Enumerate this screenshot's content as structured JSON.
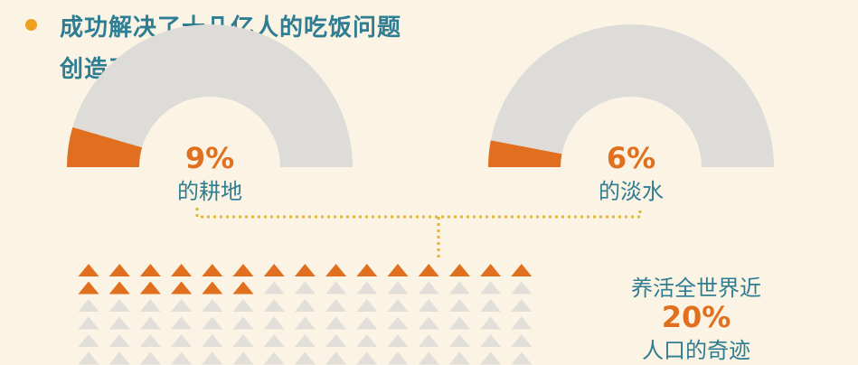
{
  "headline": {
    "line1": "成功解决了十几亿人的吃饭问题",
    "line2": "创造了用全世界"
  },
  "colors": {
    "background": "#fbf3e3",
    "accent": "#e0701f",
    "bullet": "#f0a020",
    "text": "#2f7d93",
    "track": "#dedcd9",
    "connector": "#e0b43c",
    "triangle_empty": "#e2dfdb"
  },
  "chart_data": [
    {
      "type": "gauge",
      "value": 9,
      "max": 100,
      "value_label": "9%",
      "label": "的耕地"
    },
    {
      "type": "gauge",
      "value": 6,
      "max": 100,
      "value_label": "6%",
      "label": "的淡水"
    },
    {
      "type": "pictogram",
      "icon": "triangle-icon",
      "filled": 21,
      "total": 105,
      "value": 20,
      "text_top": "养活全世界近",
      "value_label": "20%",
      "text_bottom": "人口的奇迹"
    }
  ]
}
